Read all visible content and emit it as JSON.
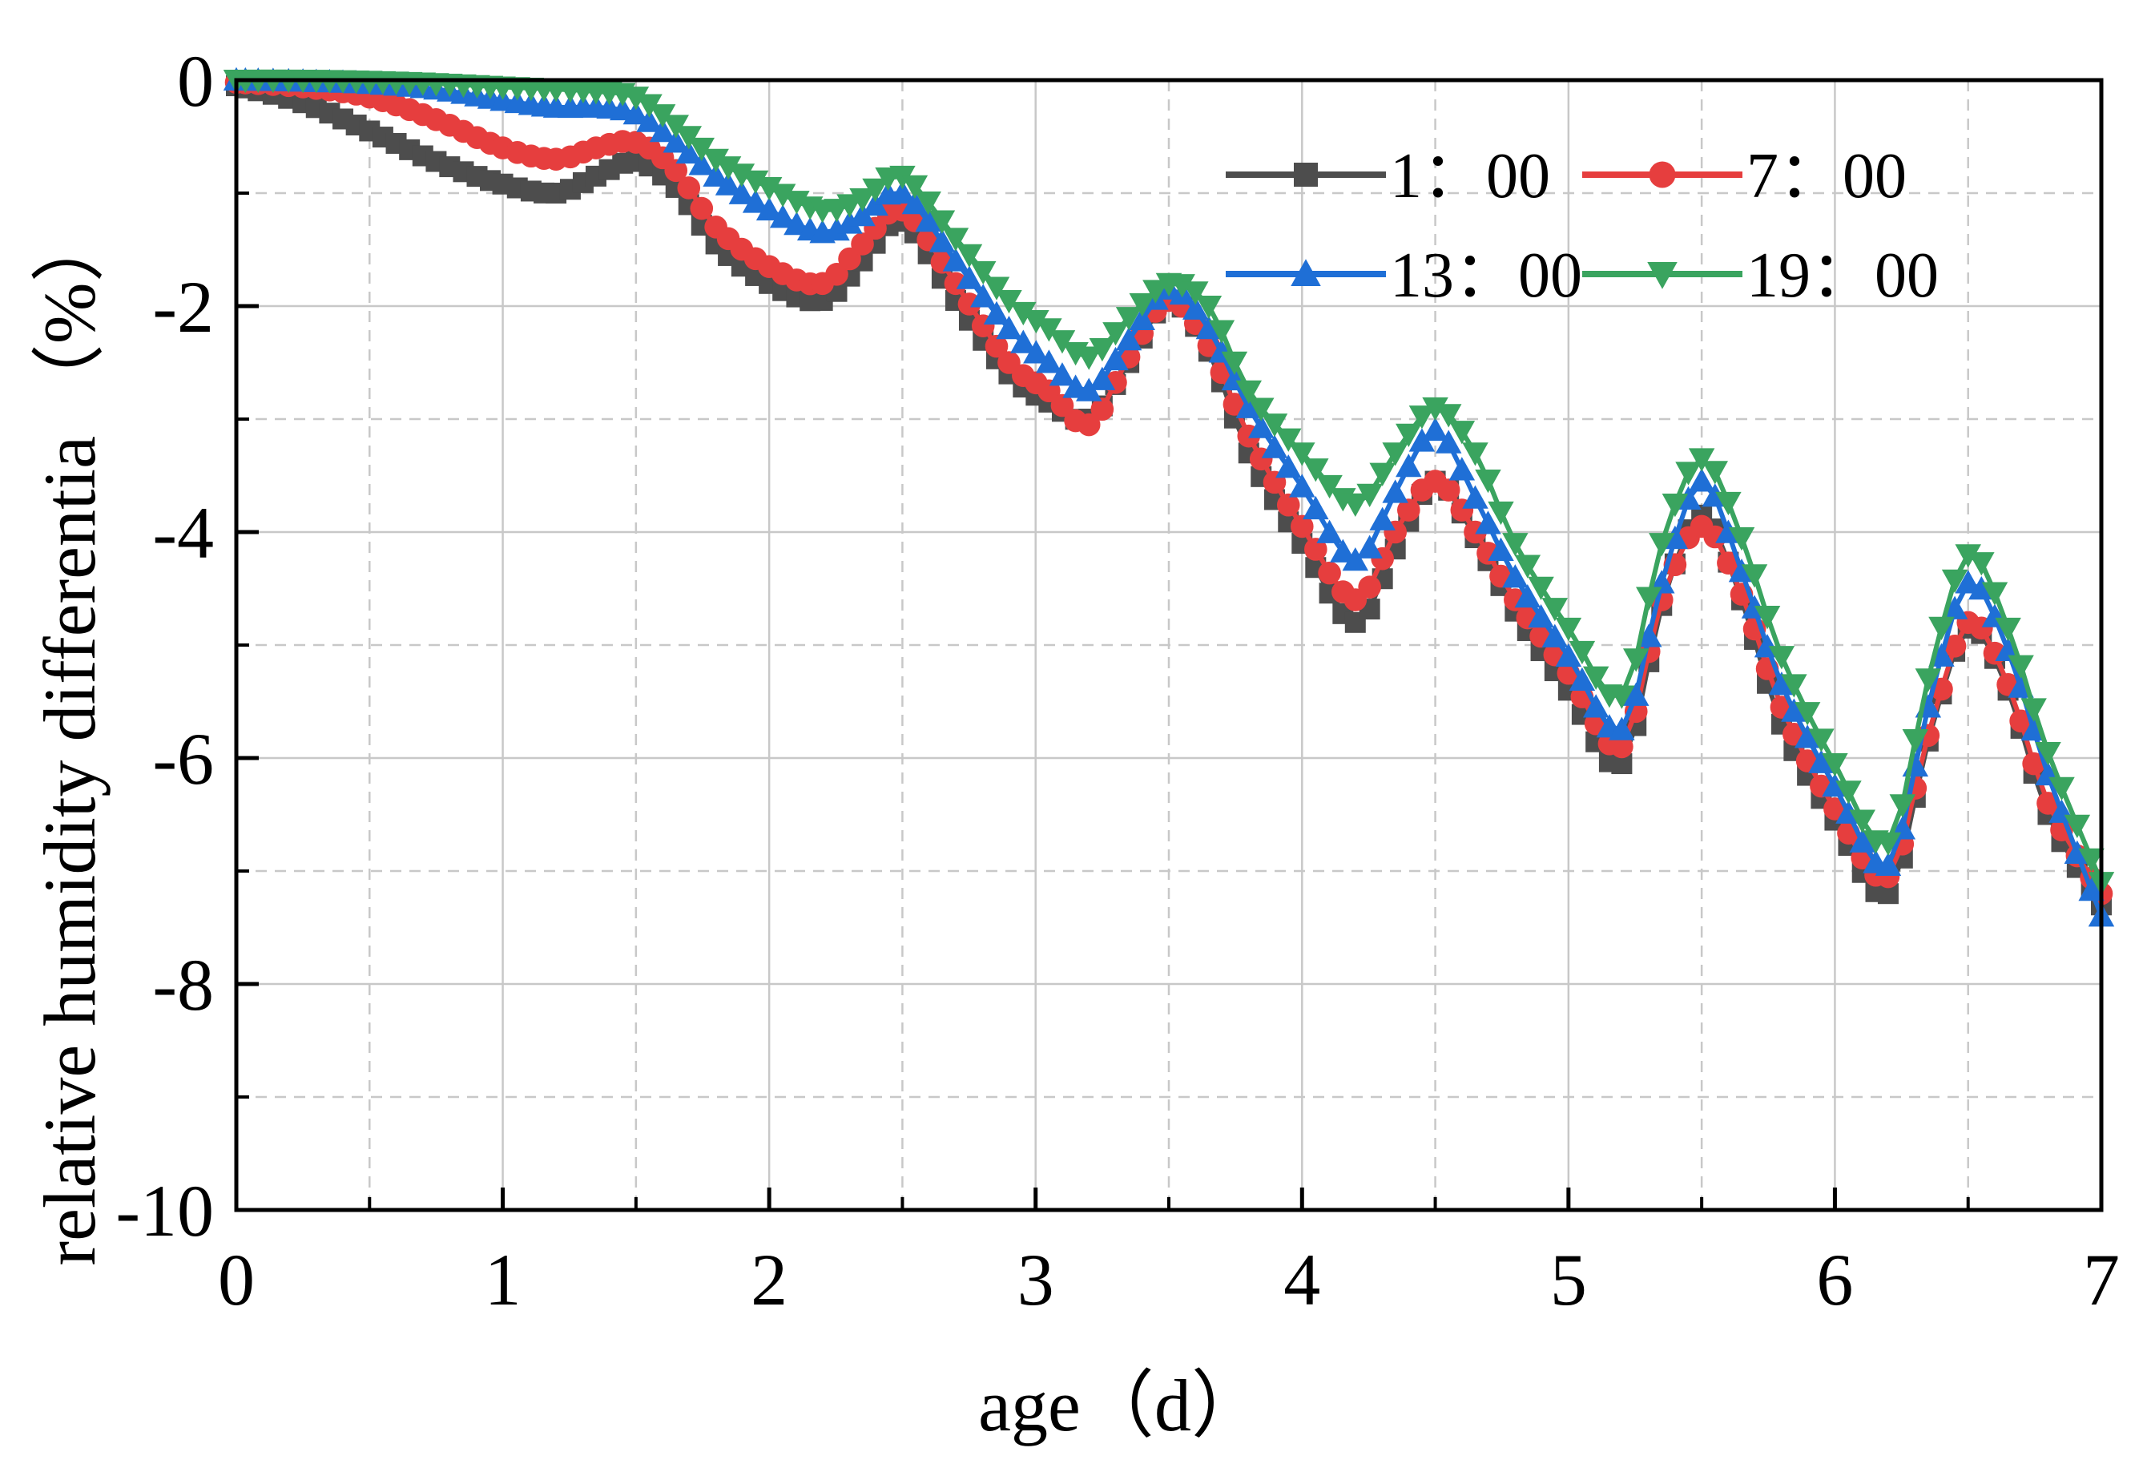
{
  "chart_data": {
    "type": "line",
    "xlabel": "age（d）",
    "ylabel": "relative humidity differentia （%）",
    "xlim": [
      0,
      7
    ],
    "ylim": [
      -10,
      0
    ],
    "xticks": [
      "0",
      "1",
      "2",
      "3",
      "4",
      "5",
      "6",
      "7"
    ],
    "yticks": [
      "0",
      "-2",
      "-4",
      "-6",
      "-8",
      "-10"
    ],
    "grid": true,
    "legend_position": "top-right",
    "series": [
      {
        "name": "1：00",
        "color": "#4d4d4d",
        "marker": "square",
        "x": [
          0,
          0.25,
          0.5,
          0.75,
          1.0,
          1.2,
          1.35,
          1.5,
          1.65,
          1.8,
          2.0,
          2.2,
          2.35,
          2.5,
          2.7,
          2.9,
          3.05,
          3.2,
          3.35,
          3.5,
          3.65,
          3.8,
          4.0,
          4.2,
          4.35,
          4.5,
          4.65,
          4.8,
          5.0,
          5.2,
          5.35,
          5.5,
          5.65,
          5.8,
          6.0,
          6.2,
          6.35,
          6.5,
          6.65,
          6.8,
          7.0
        ],
        "y": [
          -0.05,
          -0.2,
          -0.45,
          -0.72,
          -0.92,
          -1.0,
          -0.85,
          -0.72,
          -0.95,
          -1.45,
          -1.8,
          -1.95,
          -1.6,
          -1.25,
          -1.95,
          -2.6,
          -2.85,
          -3.0,
          -2.5,
          -1.95,
          -2.4,
          -3.3,
          -4.1,
          -4.8,
          -4.15,
          -3.55,
          -4.05,
          -4.7,
          -5.4,
          -6.05,
          -4.65,
          -3.85,
          -4.6,
          -5.7,
          -6.55,
          -7.2,
          -5.85,
          -4.85,
          -5.4,
          -6.5,
          -7.3
        ]
      },
      {
        "name": "7：00",
        "color": "#e63e3e",
        "marker": "circle",
        "x": [
          0,
          0.25,
          0.5,
          0.75,
          1.0,
          1.2,
          1.35,
          1.5,
          1.65,
          1.8,
          2.0,
          2.2,
          2.35,
          2.5,
          2.7,
          2.9,
          3.05,
          3.2,
          3.35,
          3.5,
          3.65,
          3.8,
          4.0,
          4.2,
          4.35,
          4.5,
          4.65,
          4.8,
          5.0,
          5.2,
          5.35,
          5.5,
          5.65,
          5.8,
          6.0,
          6.2,
          6.35,
          6.5,
          6.65,
          6.8,
          7.0
        ],
        "y": [
          -0.02,
          -0.06,
          -0.15,
          -0.35,
          -0.6,
          -0.7,
          -0.6,
          -0.55,
          -0.8,
          -1.3,
          -1.65,
          -1.8,
          -1.45,
          -1.15,
          -1.8,
          -2.5,
          -2.75,
          -3.05,
          -2.45,
          -1.95,
          -2.35,
          -3.15,
          -3.95,
          -4.6,
          -4.0,
          -3.55,
          -4.0,
          -4.6,
          -5.25,
          -5.9,
          -4.6,
          -3.95,
          -4.55,
          -5.55,
          -6.45,
          -7.05,
          -5.8,
          -4.8,
          -5.35,
          -6.4,
          -7.2
        ]
      },
      {
        "name": "13：00",
        "color": "#1f6fd6",
        "marker": "triangle-up",
        "x": [
          0,
          0.25,
          0.5,
          0.75,
          1.0,
          1.2,
          1.35,
          1.5,
          1.65,
          1.8,
          2.0,
          2.2,
          2.35,
          2.5,
          2.7,
          2.9,
          3.05,
          3.2,
          3.35,
          3.5,
          3.65,
          3.8,
          4.0,
          4.2,
          4.35,
          4.5,
          4.65,
          4.8,
          5.0,
          5.2,
          5.35,
          5.5,
          5.65,
          5.8,
          6.0,
          6.2,
          6.35,
          6.5,
          6.65,
          6.8,
          7.0
        ],
        "y": [
          0,
          -0.01,
          -0.03,
          -0.08,
          -0.18,
          -0.24,
          -0.24,
          -0.3,
          -0.55,
          -0.85,
          -1.15,
          -1.35,
          -1.2,
          -1.0,
          -1.6,
          -2.2,
          -2.5,
          -2.75,
          -2.3,
          -1.85,
          -2.2,
          -2.9,
          -3.6,
          -4.25,
          -3.65,
          -3.1,
          -3.7,
          -4.4,
          -5.1,
          -5.75,
          -4.45,
          -3.55,
          -4.35,
          -5.35,
          -6.25,
          -6.95,
          -5.55,
          -4.45,
          -5.05,
          -6.15,
          -7.4
        ]
      },
      {
        "name": "19：00",
        "color": "#3aa45f",
        "marker": "triangle-down",
        "x": [
          0,
          0.25,
          0.5,
          0.75,
          1.0,
          1.2,
          1.35,
          1.5,
          1.65,
          1.8,
          2.0,
          2.2,
          2.35,
          2.5,
          2.7,
          2.9,
          3.05,
          3.2,
          3.35,
          3.5,
          3.65,
          3.8,
          4.0,
          4.2,
          4.35,
          4.5,
          4.65,
          4.8,
          5.0,
          5.2,
          5.35,
          5.5,
          5.65,
          5.8,
          6.0,
          6.2,
          6.35,
          6.5,
          6.65,
          6.8,
          7.0
        ],
        "y": [
          0,
          0,
          -0.01,
          -0.03,
          -0.06,
          -0.08,
          -0.1,
          -0.15,
          -0.4,
          -0.7,
          -0.95,
          -1.15,
          -1.05,
          -0.85,
          -1.4,
          -1.95,
          -2.2,
          -2.45,
          -2.1,
          -1.8,
          -2.0,
          -2.75,
          -3.3,
          -3.75,
          -3.3,
          -2.9,
          -3.3,
          -4.1,
          -4.85,
          -5.45,
          -4.1,
          -3.35,
          -4.05,
          -5.1,
          -6.05,
          -6.75,
          -5.3,
          -4.2,
          -4.85,
          -5.95,
          -7.1
        ]
      }
    ]
  }
}
